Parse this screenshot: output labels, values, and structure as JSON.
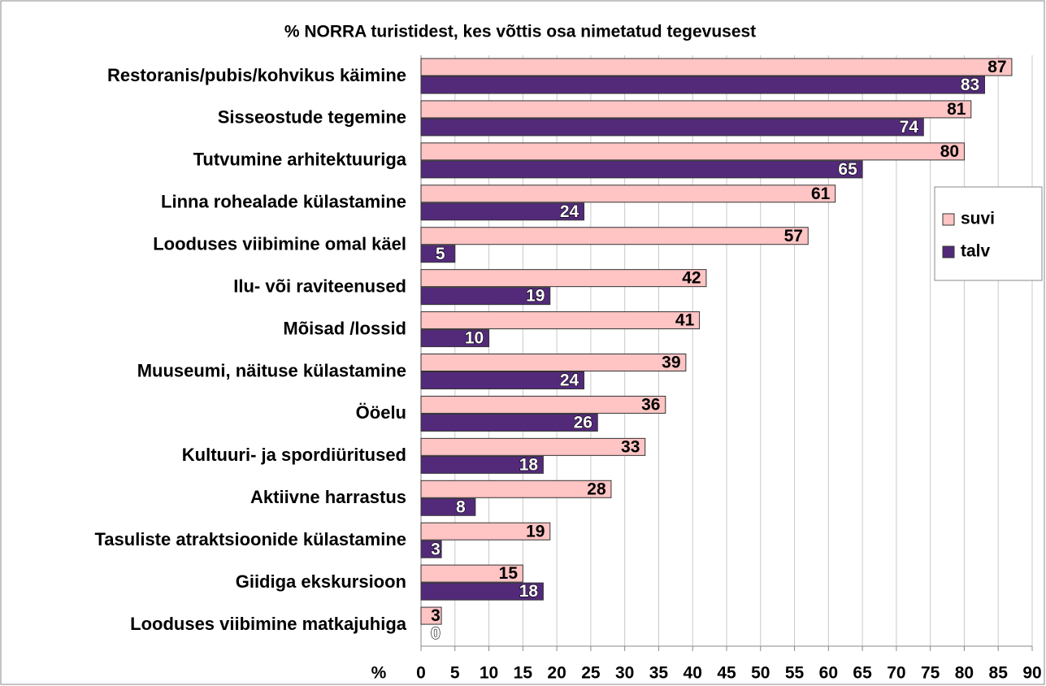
{
  "chart_data": {
    "type": "bar",
    "orientation": "horizontal",
    "title": "% NORRA turistidest, kes võttis osa nimetatud tegevusest",
    "x_label": "%",
    "categories": [
      "Restoranis/pubis/kohvikus käimine",
      "Sisseostude tegemine",
      "Tutvumine arhitektuuriga",
      "Linna rohealade külastamine",
      "Looduses viibimine omal käel",
      "Ilu- või raviteenused",
      "Mõisad /lossid",
      "Muuseumi, näituse külastamine",
      "Ööelu",
      "Kultuuri- ja spordiüritused",
      "Aktiivne harrastus",
      "Tasuliste atraktsioonide külastamine",
      "Giidiga ekskursioon",
      "Looduses viibimine matkajuhiga"
    ],
    "series": [
      {
        "name": "suvi",
        "color": "#ffc4c4",
        "values": [
          87,
          81,
          80,
          61,
          57,
          42,
          41,
          39,
          36,
          33,
          28,
          19,
          15,
          3
        ]
      },
      {
        "name": "talv",
        "color": "#532a7a",
        "values": [
          83,
          74,
          65,
          24,
          5,
          19,
          10,
          24,
          26,
          18,
          8,
          3,
          18,
          0
        ]
      }
    ],
    "xlim": [
      0,
      90
    ],
    "xticks": [
      0,
      5,
      10,
      15,
      20,
      25,
      30,
      35,
      40,
      45,
      50,
      55,
      60,
      65,
      70,
      75,
      80,
      85,
      90
    ],
    "grid": true,
    "legend": "right"
  }
}
